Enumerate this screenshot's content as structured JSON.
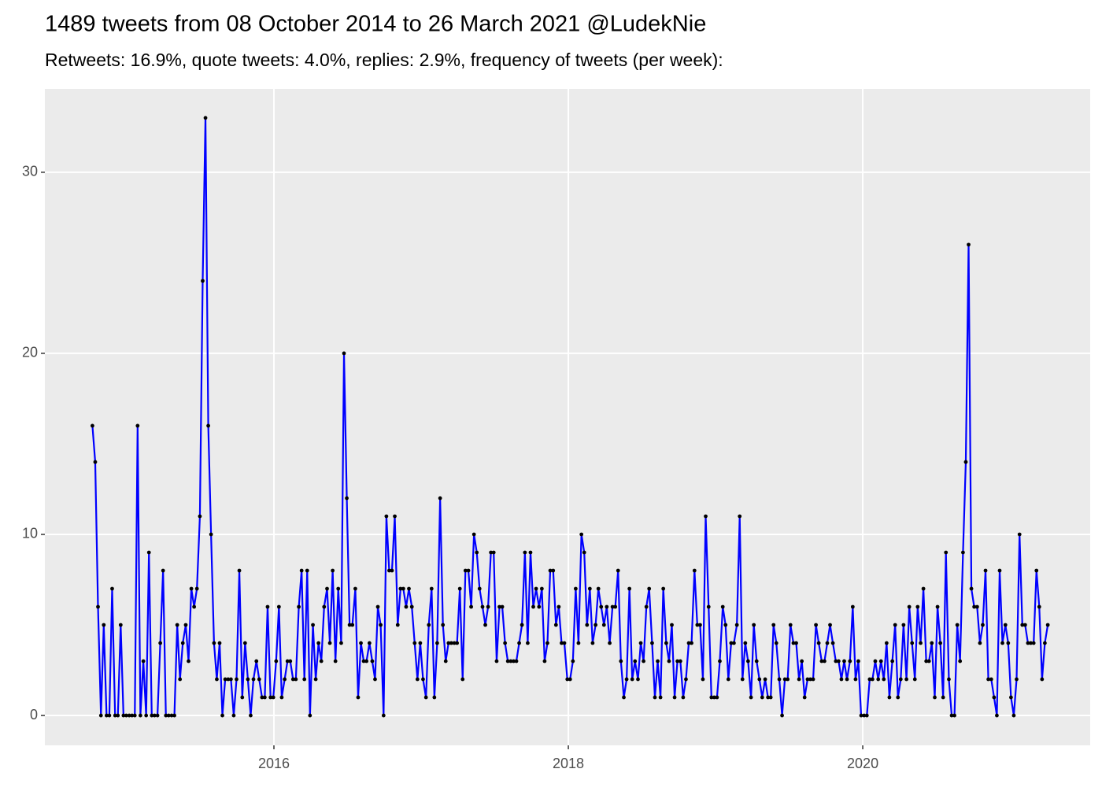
{
  "chart_data": {
    "type": "line",
    "title": "1489 tweets from 08 October 2014 to 26 March 2021 @LudekNie",
    "subtitle": "Retweets: 16.9%, quote tweets: 4.0%, replies: 2.9%, frequency of tweets (per week):",
    "color": "#0000ff",
    "point_color": "#000000",
    "grid": true,
    "xlim": [
      2014.444,
      2021.545
    ],
    "ylim": [
      -1.65,
      34.6
    ],
    "xticks": [
      2016,
      2018,
      2020
    ],
    "yticks": [
      0,
      10,
      20,
      30
    ],
    "x": [
      2014.767,
      2014.786,
      2014.805,
      2014.825,
      2014.844,
      2014.863,
      2014.882,
      2014.901,
      2014.921,
      2014.94,
      2014.959,
      2014.978,
      2014.997,
      2015.017,
      2015.036,
      2015.055,
      2015.074,
      2015.093,
      2015.113,
      2015.132,
      2015.151,
      2015.17,
      2015.189,
      2015.209,
      2015.228,
      2015.247,
      2015.266,
      2015.285,
      2015.305,
      2015.324,
      2015.343,
      2015.362,
      2015.381,
      2015.401,
      2015.42,
      2015.439,
      2015.458,
      2015.477,
      2015.497,
      2015.516,
      2015.535,
      2015.554,
      2015.573,
      2015.593,
      2015.612,
      2015.631,
      2015.65,
      2015.669,
      2015.689,
      2015.708,
      2015.727,
      2015.746,
      2015.765,
      2015.785,
      2015.804,
      2015.823,
      2015.842,
      2015.861,
      2015.881,
      2015.9,
      2015.919,
      2015.938,
      2015.957,
      2015.977,
      2015.996,
      2016.015,
      2016.034,
      2016.053,
      2016.073,
      2016.092,
      2016.111,
      2016.13,
      2016.149,
      2016.169,
      2016.188,
      2016.207,
      2016.226,
      2016.245,
      2016.265,
      2016.284,
      2016.303,
      2016.322,
      2016.341,
      2016.361,
      2016.38,
      2016.399,
      2016.418,
      2016.437,
      2016.457,
      2016.476,
      2016.495,
      2016.514,
      2016.533,
      2016.553,
      2016.572,
      2016.591,
      2016.61,
      2016.629,
      2016.649,
      2016.668,
      2016.687,
      2016.706,
      2016.725,
      2016.745,
      2016.764,
      2016.783,
      2016.802,
      2016.821,
      2016.841,
      2016.86,
      2016.879,
      2016.898,
      2016.917,
      2016.937,
      2016.956,
      2016.975,
      2016.994,
      2017.013,
      2017.033,
      2017.052,
      2017.071,
      2017.09,
      2017.109,
      2017.129,
      2017.148,
      2017.167,
      2017.186,
      2017.205,
      2017.225,
      2017.244,
      2017.263,
      2017.282,
      2017.301,
      2017.321,
      2017.34,
      2017.359,
      2017.378,
      2017.397,
      2017.417,
      2017.436,
      2017.455,
      2017.474,
      2017.493,
      2017.513,
      2017.532,
      2017.551,
      2017.57,
      2017.589,
      2017.609,
      2017.628,
      2017.647,
      2017.666,
      2017.685,
      2017.705,
      2017.724,
      2017.743,
      2017.762,
      2017.781,
      2017.801,
      2017.82,
      2017.839,
      2017.858,
      2017.877,
      2017.897,
      2017.916,
      2017.935,
      2017.954,
      2017.973,
      2017.993,
      2018.012,
      2018.031,
      2018.05,
      2018.069,
      2018.089,
      2018.108,
      2018.127,
      2018.146,
      2018.165,
      2018.185,
      2018.204,
      2018.223,
      2018.242,
      2018.261,
      2018.281,
      2018.3,
      2018.319,
      2018.338,
      2018.357,
      2018.377,
      2018.396,
      2018.415,
      2018.434,
      2018.453,
      2018.473,
      2018.492,
      2018.511,
      2018.53,
      2018.549,
      2018.569,
      2018.588,
      2018.607,
      2018.626,
      2018.645,
      2018.665,
      2018.684,
      2018.703,
      2018.722,
      2018.741,
      2018.761,
      2018.78,
      2018.799,
      2018.818,
      2018.837,
      2018.857,
      2018.876,
      2018.895,
      2018.914,
      2018.933,
      2018.953,
      2018.972,
      2018.991,
      2019.01,
      2019.029,
      2019.049,
      2019.068,
      2019.087,
      2019.106,
      2019.125,
      2019.145,
      2019.164,
      2019.183,
      2019.202,
      2019.221,
      2019.241,
      2019.26,
      2019.279,
      2019.298,
      2019.317,
      2019.337,
      2019.356,
      2019.375,
      2019.394,
      2019.413,
      2019.433,
      2019.452,
      2019.471,
      2019.49,
      2019.509,
      2019.529,
      2019.548,
      2019.567,
      2019.586,
      2019.605,
      2019.625,
      2019.644,
      2019.663,
      2019.682,
      2019.701,
      2019.721,
      2019.74,
      2019.759,
      2019.778,
      2019.797,
      2019.817,
      2019.836,
      2019.855,
      2019.874,
      2019.893,
      2019.913,
      2019.932,
      2019.951,
      2019.97,
      2019.989,
      2020.009,
      2020.028,
      2020.047,
      2020.066,
      2020.085,
      2020.105,
      2020.124,
      2020.143,
      2020.162,
      2020.181,
      2020.201,
      2020.22,
      2020.239,
      2020.258,
      2020.277,
      2020.297,
      2020.316,
      2020.335,
      2020.354,
      2020.373,
      2020.393,
      2020.412,
      2020.431,
      2020.45,
      2020.469,
      2020.489,
      2020.508,
      2020.527,
      2020.546,
      2020.565,
      2020.585,
      2020.604,
      2020.623,
      2020.642,
      2020.661,
      2020.681,
      2020.7,
      2020.719,
      2020.738,
      2020.757,
      2020.777,
      2020.796,
      2020.815,
      2020.834,
      2020.853,
      2020.873,
      2020.892,
      2020.911,
      2020.93,
      2020.949,
      2020.969,
      2020.988,
      2021.007,
      2021.026,
      2021.045,
      2021.065,
      2021.084,
      2021.103,
      2021.122,
      2021.141,
      2021.161,
      2021.18,
      2021.199,
      2021.218,
      2021.237,
      2021.257
    ],
    "values": [
      16,
      14,
      6,
      0,
      5,
      0,
      0,
      7,
      0,
      0,
      5,
      0,
      0,
      0,
      0,
      0,
      16,
      0,
      3,
      0,
      9,
      0,
      0,
      0,
      4,
      8,
      0,
      0,
      0,
      0,
      5,
      2,
      4,
      5,
      3,
      7,
      6,
      7,
      11,
      24,
      33,
      16,
      10,
      4,
      2,
      4,
      0,
      2,
      2,
      2,
      0,
      2,
      8,
      1,
      4,
      2,
      0,
      2,
      3,
      2,
      1,
      1,
      6,
      1,
      1,
      3,
      6,
      1,
      2,
      3,
      3,
      2,
      2,
      6,
      8,
      2,
      8,
      0,
      5,
      2,
      4,
      3,
      6,
      7,
      4,
      8,
      3,
      7,
      4,
      20,
      12,
      5,
      5,
      7,
      1,
      4,
      3,
      3,
      4,
      3,
      2,
      6,
      5,
      0,
      11,
      8,
      8,
      11,
      5,
      7,
      7,
      6,
      7,
      6,
      4,
      2,
      4,
      2,
      1,
      5,
      7,
      1,
      4,
      12,
      5,
      3,
      4,
      4,
      4,
      4,
      7,
      2,
      8,
      8,
      6,
      10,
      9,
      7,
      6,
      5,
      6,
      9,
      9,
      3,
      6,
      6,
      4,
      3,
      3,
      3,
      3,
      4,
      5,
      9,
      4,
      9,
      6,
      7,
      6,
      7,
      3,
      4,
      8,
      8,
      5,
      6,
      4,
      4,
      2,
      2,
      3,
      7,
      4,
      10,
      9,
      5,
      7,
      4,
      5,
      7,
      6,
      5,
      6,
      4,
      6,
      6,
      8,
      3,
      1,
      2,
      7,
      2,
      3,
      2,
      4,
      3,
      6,
      7,
      4,
      1,
      3,
      1,
      7,
      4,
      3,
      5,
      1,
      3,
      3,
      1,
      2,
      4,
      4,
      8,
      5,
      5,
      2,
      11,
      6,
      1,
      1,
      1,
      3,
      6,
      5,
      2,
      4,
      4,
      5,
      11,
      2,
      4,
      3,
      1,
      5,
      3,
      2,
      1,
      2,
      1,
      1,
      5,
      4,
      2,
      0,
      2,
      2,
      5,
      4,
      4,
      2,
      3,
      1,
      2,
      2,
      2,
      5,
      4,
      3,
      3,
      4,
      5,
      4,
      3,
      3,
      2,
      3,
      2,
      3,
      6,
      2,
      3,
      0,
      0,
      0,
      2,
      2,
      3,
      2,
      3,
      2,
      4,
      1,
      3,
      5,
      1,
      2,
      5,
      2,
      6,
      4,
      2,
      6,
      4,
      7,
      3,
      3,
      4,
      1,
      6,
      4,
      1,
      9,
      2,
      0,
      0,
      5,
      3,
      9,
      14,
      26,
      7,
      6,
      6,
      4,
      5,
      8,
      2,
      2,
      1,
      0,
      8,
      4,
      5,
      4,
      1,
      0,
      2,
      10,
      5,
      5,
      4,
      4,
      4,
      8,
      6,
      2,
      4,
      5
    ]
  }
}
